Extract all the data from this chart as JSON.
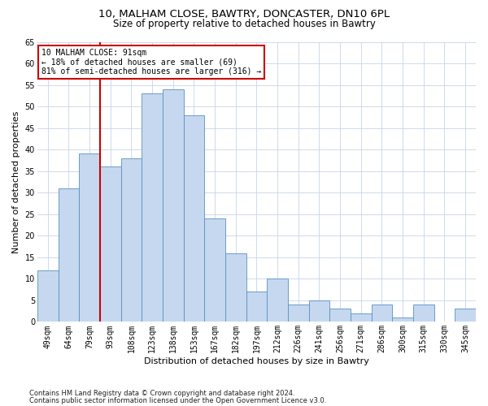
{
  "title1": "10, MALHAM CLOSE, BAWTRY, DONCASTER, DN10 6PL",
  "title2": "Size of property relative to detached houses in Bawtry",
  "xlabel": "Distribution of detached houses by size in Bawtry",
  "ylabel": "Number of detached properties",
  "categories": [
    "49sqm",
    "64sqm",
    "79sqm",
    "93sqm",
    "108sqm",
    "123sqm",
    "138sqm",
    "153sqm",
    "167sqm",
    "182sqm",
    "197sqm",
    "212sqm",
    "226sqm",
    "241sqm",
    "256sqm",
    "271sqm",
    "286sqm",
    "300sqm",
    "315sqm",
    "330sqm",
    "345sqm"
  ],
  "values": [
    12,
    31,
    39,
    36,
    38,
    53,
    54,
    48,
    24,
    16,
    7,
    10,
    4,
    5,
    3,
    2,
    4,
    1,
    4,
    0,
    3
  ],
  "bar_color": "#c5d8f0",
  "bar_edge_color": "#5a8fc0",
  "vline_x_index": 3,
  "vline_color": "#cc0000",
  "annotation_text": "10 MALHAM CLOSE: 91sqm\n← 18% of detached houses are smaller (69)\n81% of semi-detached houses are larger (316) →",
  "annotation_box_color": "#ffffff",
  "annotation_box_edge": "#cc0000",
  "ylim": [
    0,
    65
  ],
  "yticks": [
    0,
    5,
    10,
    15,
    20,
    25,
    30,
    35,
    40,
    45,
    50,
    55,
    60,
    65
  ],
  "footnote1": "Contains HM Land Registry data © Crown copyright and database right 2024.",
  "footnote2": "Contains public sector information licensed under the Open Government Licence v3.0.",
  "bg_color": "#ffffff",
  "grid_color": "#c8d4e8",
  "title1_fontsize": 9.5,
  "title2_fontsize": 8.5,
  "tick_fontsize": 7,
  "label_fontsize": 8,
  "footnote_fontsize": 6
}
